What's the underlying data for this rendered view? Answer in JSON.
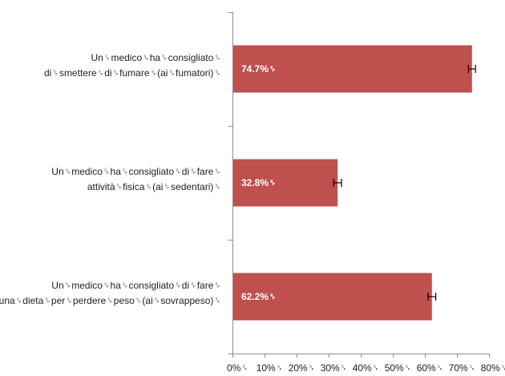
{
  "chart_data": {
    "type": "bar",
    "orientation": "horizontal",
    "categories": [
      [
        "Un␠medico␠ha␠consigliato␠",
        "di␠smettere␠di␠fumare␠(ai␠fumatori)␠"
      ],
      [
        "Un␠medico␠ha␠consigliato␠di␠fare␠",
        "attività␠fisica␠(ai␠sedentari)␠"
      ],
      [
        "Un␠medico␠ha␠consigliato␠di␠fare␠",
        "una␠dieta␠per␠perdere␠peso␠(ai␠sovrappeso)␠"
      ]
    ],
    "values": [
      74.7,
      32.8,
      62.2
    ],
    "error_low": [
      73.6,
      31.6,
      61.0
    ],
    "error_high": [
      75.8,
      34.0,
      63.4
    ],
    "data_labels": [
      "74.7%␠",
      "32.8%␠",
      "62.2%␠"
    ],
    "xlim": [
      0,
      80
    ],
    "x_ticks": [
      0,
      10,
      20,
      30,
      40,
      50,
      60,
      70,
      80
    ],
    "x_tick_labels": [
      "0%␠",
      "10%␠",
      "20%␠",
      "30%␠",
      "40%␠",
      "50%␠",
      "60%␠",
      "70%␠",
      "80%␠"
    ],
    "title": "",
    "xlabel": "",
    "ylabel": "",
    "grid": false,
    "legend": "none",
    "bar_color": "#c0504d",
    "axis_color": "#8c8c8c"
  }
}
